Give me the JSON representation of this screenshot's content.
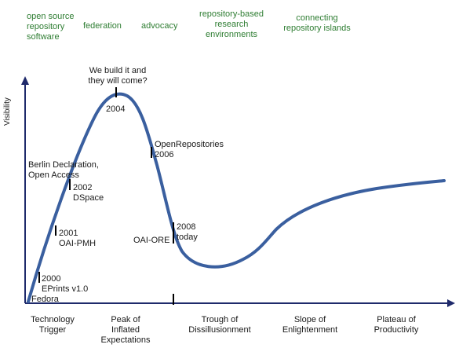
{
  "themes": [
    "open source\nrepository\nsoftware",
    "federation",
    "advocacy",
    "repository-based\nresearch\nenvironments",
    "connecting\nrepository islands"
  ],
  "y_axis_label": "Visibility",
  "phases": [
    "Technology\nTrigger",
    "Peak of\nInflated\nExpectations",
    "Trough of\nDissillusionment",
    "Slope of\nEnlightenment",
    "Plateau of\nProductivity"
  ],
  "annotations": {
    "peak_quote": "We build it and\nthey will come?",
    "year_2004": "2004",
    "open_repos": "OpenRepositories\n2006",
    "berlin": "Berlin Declaration,\nOpen Access",
    "year_2002": "2002\nDSpace",
    "year_2001": "2001\nOAI-PMH",
    "year_2000": "2000\nEPrints v1.0",
    "fedora": "Fedora",
    "year_2008": "2008\ntoday",
    "oai_ore": "OAI-ORE"
  },
  "colors": {
    "curve": "#3a5f9f",
    "axis": "#1f2a6b",
    "theme_text": "#2e7d32"
  }
}
